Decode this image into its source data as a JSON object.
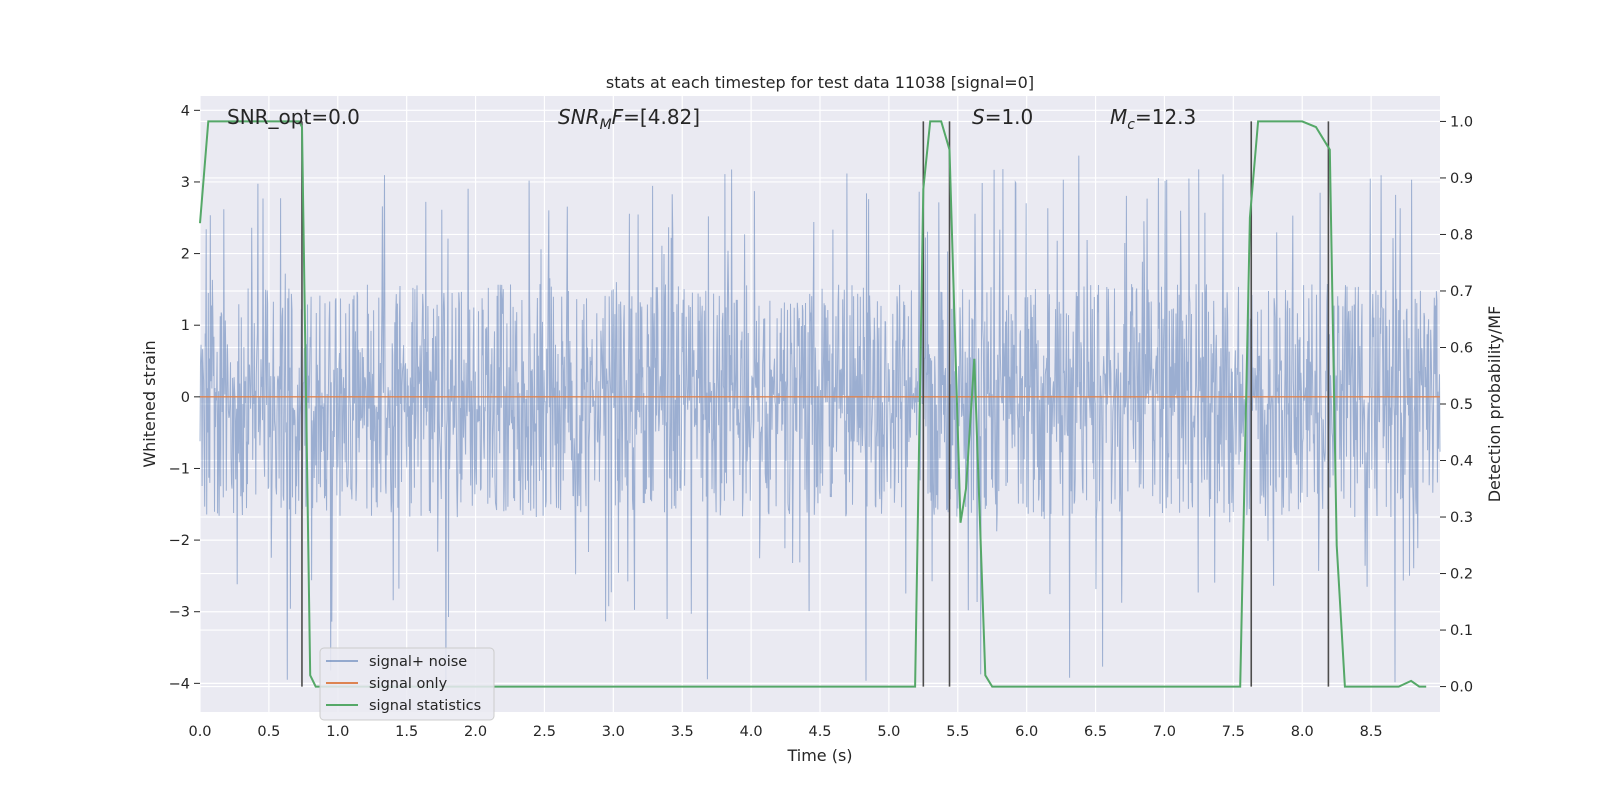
{
  "chart_data": {
    "type": "line",
    "title": "stats at each timestep for test data 11038 [signal=0]",
    "xlabel": "Time (s)",
    "ylabel": "Whitened strain",
    "y2label": "Detection probability/MF",
    "xlim": [
      0.0,
      9.0
    ],
    "ylim": [
      -4.4,
      4.2
    ],
    "y2lim": [
      -0.045,
      1.045
    ],
    "grid": true,
    "legend_position": "lower-left",
    "x_ticks": [
      0.0,
      0.5,
      1.0,
      1.5,
      2.0,
      2.5,
      3.0,
      3.5,
      4.0,
      4.5,
      5.0,
      5.5,
      6.0,
      6.5,
      7.0,
      7.5,
      8.0,
      8.5
    ],
    "x_tick_labels": [
      "0.0",
      "0.5",
      "1.0",
      "1.5",
      "2.0",
      "2.5",
      "3.0",
      "3.5",
      "4.0",
      "4.5",
      "5.0",
      "5.5",
      "6.0",
      "6.5",
      "7.0",
      "7.5",
      "8.0",
      "8.5"
    ],
    "y_ticks": [
      4,
      3,
      2,
      1,
      0,
      -1,
      -2,
      -3,
      -4
    ],
    "y_tick_labels": [
      "4",
      "3",
      "2",
      "1",
      "0",
      "−1",
      "−2",
      "−3",
      "−4"
    ],
    "y2_ticks": [
      1.0,
      0.9,
      0.8,
      0.7,
      0.6,
      0.5,
      0.4,
      0.3,
      0.2,
      0.1,
      0.0
    ],
    "y2_tick_labels": [
      "1.0",
      "0.9",
      "0.8",
      "0.7",
      "0.6",
      "0.5",
      "0.4",
      "0.3",
      "0.2",
      "0.1",
      "0.0"
    ],
    "annotations": {
      "snr_opt": "SNR_opt=0.0",
      "snr_mf_label": "SNR",
      "snr_mf_sub": "M",
      "snr_mf_tail": "F",
      "snr_mf_value": "=[4.82]",
      "s_label": "S",
      "s_value": "=1.0",
      "mc_label": "M",
      "mc_sub": "c",
      "mc_value": "=12.3"
    },
    "legend": [
      "signal+ noise",
      "signal only",
      "signal statistics"
    ],
    "colors": {
      "noise": "#4c72b0",
      "signal": "#dd8452",
      "stats": "#55a868",
      "vline": "#4d4d4d",
      "plot_bg": "#eaeaf2",
      "grid": "#ffffff"
    },
    "series": [
      {
        "name": "signal+ noise",
        "axis": "left",
        "description_level": "dense whitened noise, core band about ±1.5 with spikes up to ~3.4 and down to ~-4.0",
        "typical_envelope": [
          -1.6,
          1.5
        ],
        "spike_extremes": [
          -4.0,
          3.4
        ]
      },
      {
        "name": "signal only",
        "axis": "left",
        "x": [
          0.0,
          9.0
        ],
        "y": [
          0.0,
          0.0
        ]
      },
      {
        "name": "signal statistics",
        "axis": "right",
        "x": [
          0.0,
          0.06,
          0.1,
          0.3,
          0.5,
          0.72,
          0.74,
          0.8,
          0.84,
          0.9,
          1.0,
          2.0,
          3.0,
          4.0,
          5.0,
          5.19,
          5.25,
          5.3,
          5.34,
          5.38,
          5.44,
          5.52,
          5.56,
          5.62,
          5.7,
          5.75,
          6.0,
          7.0,
          7.55,
          7.62,
          7.68,
          7.8,
          8.0,
          8.1,
          8.2,
          8.25,
          8.31,
          8.35,
          8.5,
          8.7,
          8.79,
          8.85,
          8.9
        ],
        "y": [
          0.82,
          1.0,
          1.0,
          1.0,
          1.0,
          1.0,
          0.99,
          0.02,
          0.0,
          0.0,
          0.0,
          0.0,
          0.0,
          0.0,
          0.0,
          0.0,
          0.88,
          1.0,
          1.0,
          1.0,
          0.95,
          0.29,
          0.35,
          0.58,
          0.02,
          0.0,
          0.0,
          0.0,
          0.0,
          0.83,
          1.0,
          1.0,
          1.0,
          0.99,
          0.95,
          0.25,
          0.0,
          0.0,
          0.0,
          0.0,
          0.01,
          0.0,
          0.0
        ]
      }
    ],
    "vlines": [
      0.74,
      5.25,
      5.44,
      7.63,
      8.19
    ]
  }
}
